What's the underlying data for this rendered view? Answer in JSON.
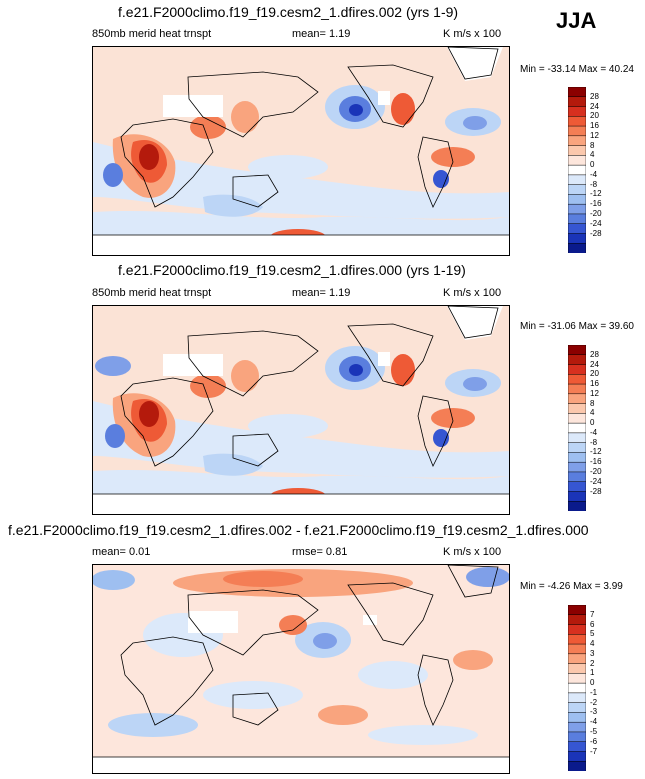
{
  "season": "JJA",
  "chart_data": [
    {
      "type": "heatmap",
      "title": "f.e21.F2000climo.f19_f19.cesm2_1.dfires.002 (yrs 1-9)",
      "left_label": "850mb merid heat trnspt",
      "center_label": "mean=  1.19",
      "right_label": "K m/s x 100",
      "minmax": "Min = -33.14 Max = 40.24",
      "colorbar": {
        "levels": [
          "28",
          "24",
          "20",
          "16",
          "12",
          "8",
          "4",
          "0",
          "-4",
          "-8",
          "-12",
          "-16",
          "-20",
          "-24",
          "-28"
        ],
        "colors": [
          "#8b0000",
          "#b41a0c",
          "#d7301f",
          "#ee5a36",
          "#f47e55",
          "#f9a47e",
          "#fbc8ad",
          "#fde6dc",
          "#ffffff",
          "#dce9fa",
          "#bcd5f6",
          "#9ebff0",
          "#7f9fe8",
          "#5a7ede",
          "#3656d2",
          "#1a34b8",
          "#0a1a8c"
        ]
      }
    },
    {
      "type": "heatmap",
      "title": "f.e21.F2000climo.f19_f19.cesm2_1.dfires.000 (yrs 1-19)",
      "left_label": "850mb merid heat trnspt",
      "center_label": "mean=  1.19",
      "right_label": "K m/s x 100",
      "minmax": "Min = -31.06 Max = 39.60",
      "colorbar": {
        "levels": [
          "28",
          "24",
          "20",
          "16",
          "12",
          "8",
          "4",
          "0",
          "-4",
          "-8",
          "-12",
          "-16",
          "-20",
          "-24",
          "-28"
        ],
        "colors": [
          "#8b0000",
          "#b41a0c",
          "#d7301f",
          "#ee5a36",
          "#f47e55",
          "#f9a47e",
          "#fbc8ad",
          "#fde6dc",
          "#ffffff",
          "#dce9fa",
          "#bcd5f6",
          "#9ebff0",
          "#7f9fe8",
          "#5a7ede",
          "#3656d2",
          "#1a34b8",
          "#0a1a8c"
        ]
      }
    },
    {
      "type": "heatmap",
      "title": "f.e21.F2000climo.f19_f19.cesm2_1.dfires.002 - f.e21.F2000climo.f19_f19.cesm2_1.dfires.000",
      "left_label": "mean=  0.01",
      "center_label": "rmse=  0.81",
      "right_label": "K m/s x 100",
      "minmax": "Min = -4.26 Max =  3.99",
      "colorbar": {
        "levels": [
          "7",
          "6",
          "5",
          "4",
          "3",
          "2",
          "1",
          "0",
          "-1",
          "-2",
          "-3",
          "-4",
          "-5",
          "-6",
          "-7"
        ],
        "colors": [
          "#8b0000",
          "#b41a0c",
          "#d7301f",
          "#ee5a36",
          "#f47e55",
          "#f9a47e",
          "#fbc8ad",
          "#fde6dc",
          "#ffffff",
          "#dce9fa",
          "#bcd5f6",
          "#9ebff0",
          "#7f9fe8",
          "#5a7ede",
          "#3656d2",
          "#1a34b8",
          "#0a1a8c"
        ]
      }
    }
  ]
}
